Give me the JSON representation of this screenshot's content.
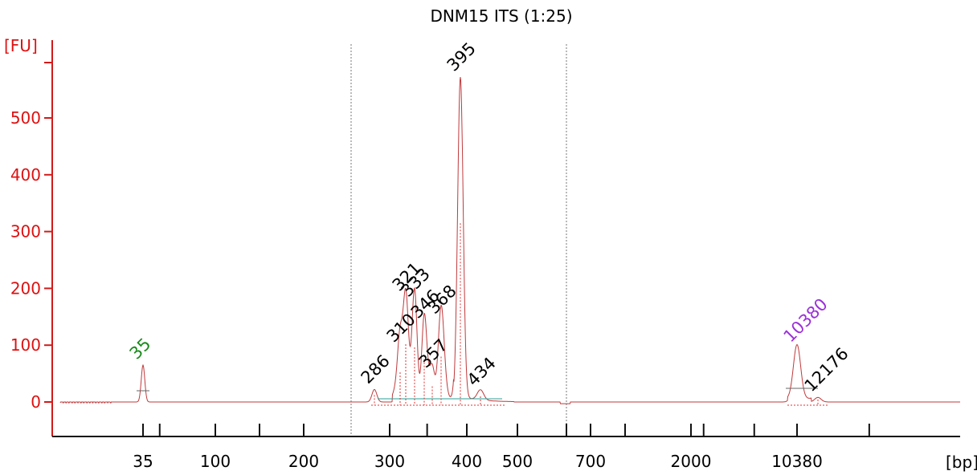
{
  "chart_data": {
    "type": "line",
    "title": "DNM15 ITS (1:25)",
    "ylabel": "[FU]",
    "xlabel": "[bp]",
    "ylim": [
      -60,
      620
    ],
    "yticks": [
      0,
      100,
      200,
      300,
      400,
      500
    ],
    "x_ticks": [
      "35",
      "100",
      "200",
      "300",
      "400",
      "500",
      "700",
      "2000",
      "10380"
    ],
    "region_markers_bp": [
      250,
      600
    ],
    "colors": {
      "trace": "#c0393b",
      "axis": "#d11a1a",
      "lower_marker": "#1a8a1a",
      "upper_marker": "#9b30d9",
      "baseline": "#2aa198",
      "dotted": "#e03030"
    },
    "grid": false,
    "series": [
      {
        "values": [
          {
            "bp": 35,
            "fu": 65
          },
          {
            "bp": 286,
            "fu": 22
          },
          {
            "bp": 310,
            "fu": 95
          },
          {
            "bp": 321,
            "fu": 185
          },
          {
            "bp": 333,
            "fu": 175
          },
          {
            "bp": 346,
            "fu": 137
          },
          {
            "bp": 357,
            "fu": 50
          },
          {
            "bp": 368,
            "fu": 145
          },
          {
            "bp": 395,
            "fu": 572
          },
          {
            "bp": 434,
            "fu": 18
          },
          {
            "bp": 10380,
            "fu": 95
          },
          {
            "bp": 12176,
            "fu": 8
          }
        ]
      }
    ],
    "peak_labels": [
      {
        "text": "35",
        "color": "lower_marker"
      },
      {
        "text": "286",
        "color": "default"
      },
      {
        "text": "310",
        "color": "default"
      },
      {
        "text": "321",
        "color": "default"
      },
      {
        "text": "333",
        "color": "default"
      },
      {
        "text": "346",
        "color": "default"
      },
      {
        "text": "357",
        "color": "default"
      },
      {
        "text": "368",
        "color": "default"
      },
      {
        "text": "395",
        "color": "default"
      },
      {
        "text": "434",
        "color": "default"
      },
      {
        "text": "10380",
        "color": "upper_marker"
      },
      {
        "text": "12176",
        "color": "default"
      }
    ]
  }
}
